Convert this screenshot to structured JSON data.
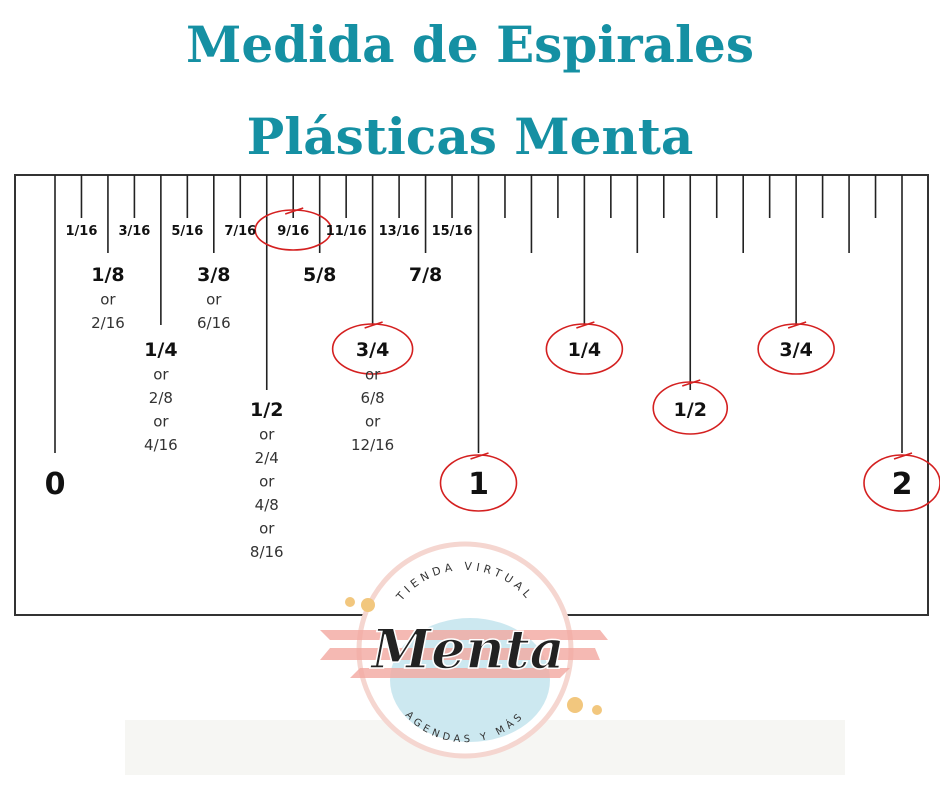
{
  "title": [
    "Medida de Espirales",
    "Plásticas Menta"
  ],
  "ruler": {
    "sixteenths": [
      "1/16",
      "3/16",
      "5/16",
      "7/16",
      "9/16",
      "11/16",
      "13/16",
      "15/16"
    ],
    "first_inch": [
      {
        "lines": [
          "1/8",
          "or",
          "2/16"
        ]
      },
      {
        "lines": [
          "1/4",
          "or",
          "2/8",
          "or",
          "4/16"
        ]
      },
      {
        "lines": [
          "3/8",
          "or",
          "6/16"
        ]
      },
      {
        "lines": [
          "1/2",
          "or",
          "2/4",
          "or",
          "4/8",
          "or",
          "8/16"
        ]
      },
      {
        "lines": [
          "5/8"
        ]
      },
      {
        "lines": [
          "3/4",
          "or",
          "6/8",
          "or",
          "12/16"
        ]
      },
      {
        "lines": [
          "7/8"
        ]
      }
    ],
    "second_inch": [
      "1/4",
      "1/2",
      "3/4"
    ],
    "inches": [
      "0",
      "1",
      "2"
    ]
  },
  "logo": {
    "top": "TIENDA VIRTUAL",
    "name": "Menta",
    "bottom": "AGENDAS Y MÁS"
  }
}
